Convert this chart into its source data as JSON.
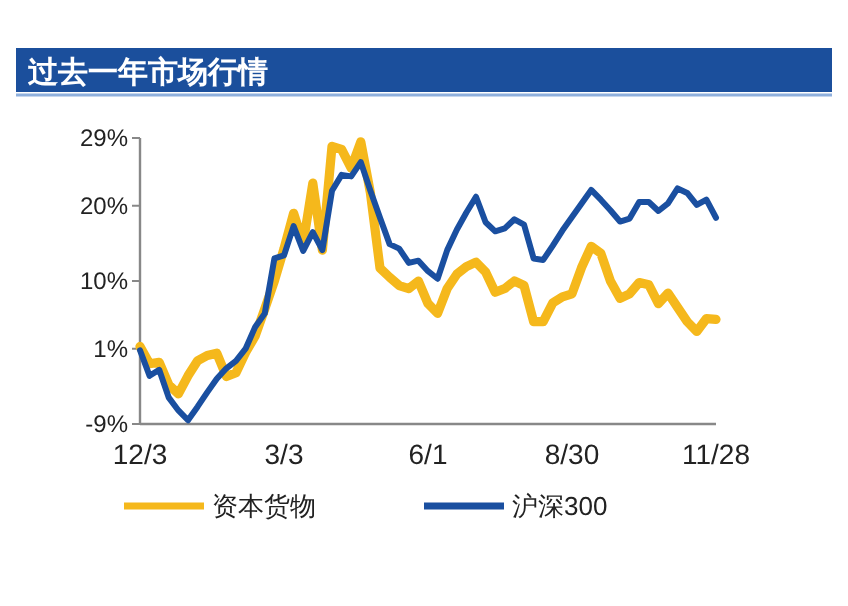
{
  "chart_data": {
    "type": "line",
    "title": "过去一年市场行情",
    "categories": [
      "12/3",
      null,
      null,
      null,
      null,
      null,
      null,
      null,
      null,
      null,
      null,
      null,
      null,
      null,
      null,
      "3/3",
      null,
      null,
      null,
      null,
      null,
      null,
      null,
      null,
      null,
      null,
      null,
      null,
      null,
      null,
      "6/1",
      null,
      null,
      null,
      null,
      null,
      null,
      null,
      null,
      null,
      null,
      null,
      null,
      null,
      null,
      "8/30",
      null,
      null,
      null,
      null,
      null,
      null,
      null,
      null,
      null,
      null,
      null,
      null,
      null,
      null,
      "11/28"
    ],
    "ylim": [
      -9,
      29
    ],
    "yticks": [
      {
        "value": -9,
        "label": "-9%"
      },
      {
        "value": 1,
        "label": "1%"
      },
      {
        "value": 10,
        "label": "10%"
      },
      {
        "value": 20,
        "label": "20%"
      },
      {
        "value": 29,
        "label": "29%"
      }
    ],
    "series": [
      {
        "name": "资本货物",
        "color": "#f5b81c",
        "values": [
          1.3,
          -1,
          -0.8,
          -3.8,
          -5,
          -2.6,
          -0.6,
          0.1,
          0.4,
          -2.7,
          -2.2,
          0.5,
          2.7,
          6.3,
          10,
          14.3,
          19,
          15,
          23,
          14.1,
          27.9,
          27.5,
          25,
          28.5,
          21.7,
          11.7,
          10.5,
          9.4,
          9,
          10,
          7,
          5.7,
          9,
          10.9,
          11.9,
          12.5,
          11.2,
          8.5,
          9,
          10,
          9.4,
          4.6,
          4.6,
          7.1,
          7.9,
          8.3,
          11.8,
          14.6,
          13.7,
          10,
          7.7,
          8.3,
          9.8,
          9.5,
          7,
          8.4,
          6.5,
          4.6,
          3.3,
          5,
          4.9
        ]
      },
      {
        "name": "沪深300",
        "color": "#1a4fa0",
        "values": [
          0.8,
          -2.6,
          -1.8,
          -5.5,
          -7.2,
          -8.5,
          -6.7,
          -4.8,
          -3,
          -1.6,
          -0.6,
          1,
          3.9,
          5.7,
          13,
          13.4,
          17.3,
          14,
          16.5,
          14.1,
          22,
          24.1,
          23.9,
          25.8,
          22,
          18.4,
          14.9,
          14.3,
          12.4,
          12.7,
          11.3,
          10.3,
          14.1,
          16.8,
          19.1,
          21.2,
          17.8,
          16.6,
          17,
          18.2,
          17.5,
          13,
          12.8,
          14.7,
          16.7,
          18.5,
          20.3,
          22.1,
          20.8,
          19.4,
          17.9,
          18.3,
          20.5,
          20.5,
          19.3,
          20.3,
          22.3,
          21.7,
          20.1,
          20.8,
          18.4
        ]
      }
    ],
    "legend": "bottom",
    "grid": false
  }
}
